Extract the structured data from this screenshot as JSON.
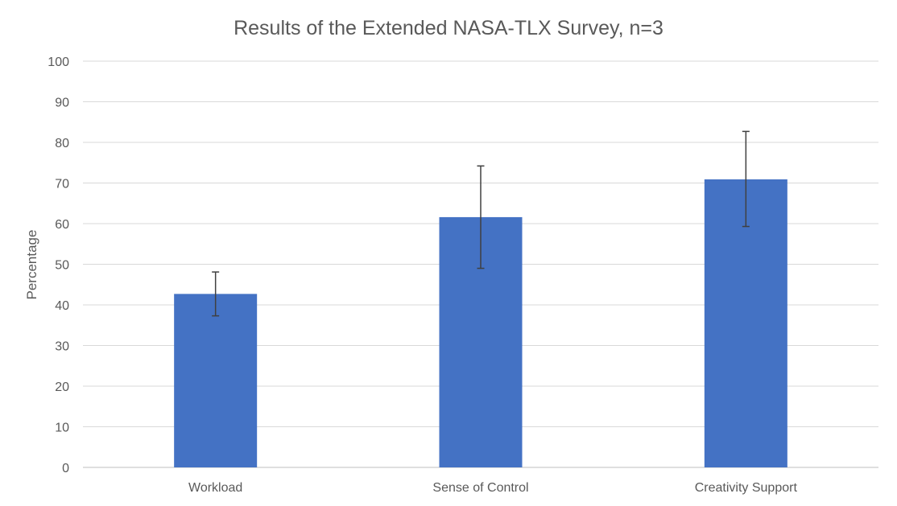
{
  "chart_data": {
    "type": "bar",
    "title": "Results of the Extended NASA-TLX Survey, n=3",
    "xlabel": "",
    "ylabel": "Percentage",
    "categories": [
      "Workload",
      "Sense of Control",
      "Creativity Support"
    ],
    "series": [
      {
        "values": [
          42.7,
          61.6,
          70.9
        ],
        "error_low": [
          37.3,
          49.0,
          59.3
        ],
        "error_high": [
          48.1,
          74.2,
          82.7
        ]
      }
    ],
    "ylim": [
      0,
      100
    ],
    "yticks": [
      0,
      10,
      20,
      30,
      40,
      50,
      60,
      70,
      80,
      90,
      100
    ],
    "grid": "horizontal",
    "legend": "none",
    "bar_color": "#4472C4",
    "grid_color": "#D9D9D9",
    "text_color": "#595959",
    "error_bar_color": "#404040"
  }
}
